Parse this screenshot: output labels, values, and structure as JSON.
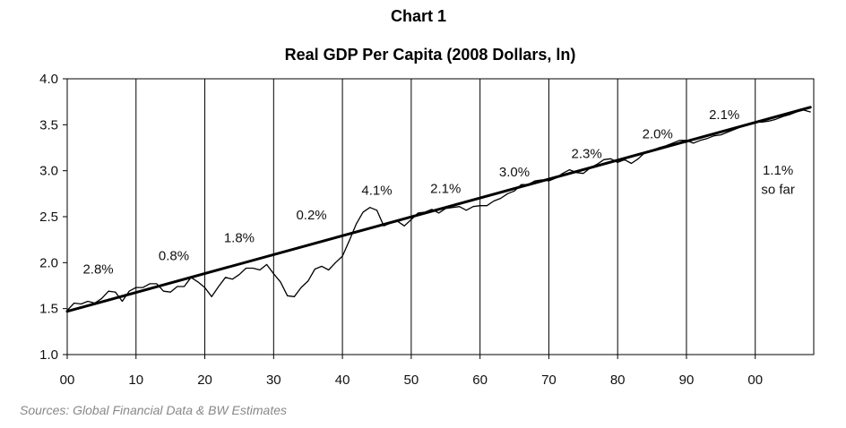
{
  "header": {
    "chart_number": "Chart 1",
    "title": "Real GDP Per Capita (2008 Dollars, ln)"
  },
  "source": "Sources: Global Financial Data & BW Estimates",
  "chart_data": {
    "type": "line",
    "title": "Real GDP Per Capita (2008 Dollars, ln)",
    "xlabel": "",
    "ylabel": "",
    "xlim": [
      1900,
      2008.5
    ],
    "ylim": [
      1.0,
      4.0
    ],
    "x_ticks": [
      1900,
      1910,
      1920,
      1930,
      1940,
      1950,
      1960,
      1970,
      1980,
      1990,
      2000
    ],
    "x_tick_labels": [
      "00",
      "10",
      "20",
      "30",
      "40",
      "50",
      "60",
      "70",
      "80",
      "90",
      "00"
    ],
    "y_ticks": [
      1.0,
      1.5,
      2.0,
      2.5,
      3.0,
      3.5,
      4.0
    ],
    "y_tick_labels": [
      "1.0",
      "1.5",
      "2.0",
      "2.5",
      "3.0",
      "3.5",
      "4.0"
    ],
    "vertical_gridlines": [
      1910,
      1920,
      1930,
      1940,
      1950,
      1960,
      1970,
      1980,
      1990,
      2000
    ],
    "horizontal_grid": false,
    "legend": "none",
    "series": [
      {
        "role": "actual",
        "color": "#000000",
        "x": [
          1900,
          1901,
          1902,
          1903,
          1904,
          1905,
          1906,
          1907,
          1908,
          1909,
          1910,
          1911,
          1912,
          1913,
          1914,
          1915,
          1916,
          1917,
          1918,
          1919,
          1920,
          1921,
          1922,
          1923,
          1924,
          1925,
          1926,
          1927,
          1928,
          1929,
          1930,
          1931,
          1932,
          1933,
          1934,
          1935,
          1936,
          1937,
          1938,
          1939,
          1940,
          1941,
          1942,
          1943,
          1944,
          1945,
          1946,
          1947,
          1948,
          1949,
          1950,
          1951,
          1952,
          1953,
          1954,
          1955,
          1956,
          1957,
          1958,
          1959,
          1960,
          1961,
          1962,
          1963,
          1964,
          1965,
          1966,
          1967,
          1968,
          1969,
          1970,
          1971,
          1972,
          1973,
          1974,
          1975,
          1976,
          1977,
          1978,
          1979,
          1980,
          1981,
          1982,
          1983,
          1984,
          1985,
          1986,
          1987,
          1988,
          1989,
          1990,
          1991,
          1992,
          1993,
          1994,
          1995,
          1996,
          1997,
          1998,
          1999,
          2000,
          2001,
          2002,
          2003,
          2004,
          2005,
          2006,
          2007,
          2008
        ],
        "y": [
          1.48,
          1.56,
          1.55,
          1.58,
          1.56,
          1.61,
          1.69,
          1.68,
          1.58,
          1.69,
          1.73,
          1.73,
          1.77,
          1.77,
          1.69,
          1.68,
          1.74,
          1.74,
          1.84,
          1.79,
          1.73,
          1.63,
          1.74,
          1.84,
          1.82,
          1.87,
          1.94,
          1.94,
          1.92,
          1.98,
          1.88,
          1.79,
          1.64,
          1.63,
          1.73,
          1.8,
          1.93,
          1.96,
          1.92,
          2.0,
          2.07,
          2.24,
          2.42,
          2.55,
          2.6,
          2.57,
          2.4,
          2.43,
          2.45,
          2.4,
          2.47,
          2.54,
          2.55,
          2.58,
          2.54,
          2.59,
          2.6,
          2.61,
          2.57,
          2.61,
          2.62,
          2.62,
          2.67,
          2.7,
          2.75,
          2.78,
          2.85,
          2.85,
          2.89,
          2.9,
          2.89,
          2.92,
          2.97,
          3.01,
          2.98,
          2.97,
          3.03,
          3.07,
          3.12,
          3.13,
          3.09,
          3.12,
          3.08,
          3.13,
          3.2,
          3.22,
          3.25,
          3.27,
          3.3,
          3.33,
          3.33,
          3.3,
          3.33,
          3.35,
          3.38,
          3.39,
          3.42,
          3.45,
          3.48,
          3.51,
          3.53,
          3.53,
          3.54,
          3.56,
          3.59,
          3.61,
          3.64,
          3.66,
          3.64
        ]
      },
      {
        "role": "trend",
        "color": "#000000",
        "x": [
          1900,
          2008
        ],
        "y": [
          1.47,
          3.69
        ]
      }
    ],
    "annotations": [
      {
        "text": "2.8%",
        "x": 1904.5,
        "y": 1.88
      },
      {
        "text": "0.8%",
        "x": 1915.5,
        "y": 2.03
      },
      {
        "text": "1.8%",
        "x": 1925,
        "y": 2.22
      },
      {
        "text": "0.2%",
        "x": 1935.5,
        "y": 2.47
      },
      {
        "text": "4.1%",
        "x": 1945,
        "y": 2.74
      },
      {
        "text": "2.1%",
        "x": 1955,
        "y": 2.76
      },
      {
        "text": "3.0%",
        "x": 1965,
        "y": 2.94
      },
      {
        "text": "2.3%",
        "x": 1975.5,
        "y": 3.14
      },
      {
        "text": "2.0%",
        "x": 1985.8,
        "y": 3.35
      },
      {
        "text": "2.1%",
        "x": 1995.5,
        "y": 3.56
      },
      {
        "text": "1.1%",
        "x": 2003.3,
        "y": 2.96
      },
      {
        "text": "so far",
        "x": 2003.3,
        "y": 2.75
      }
    ]
  }
}
